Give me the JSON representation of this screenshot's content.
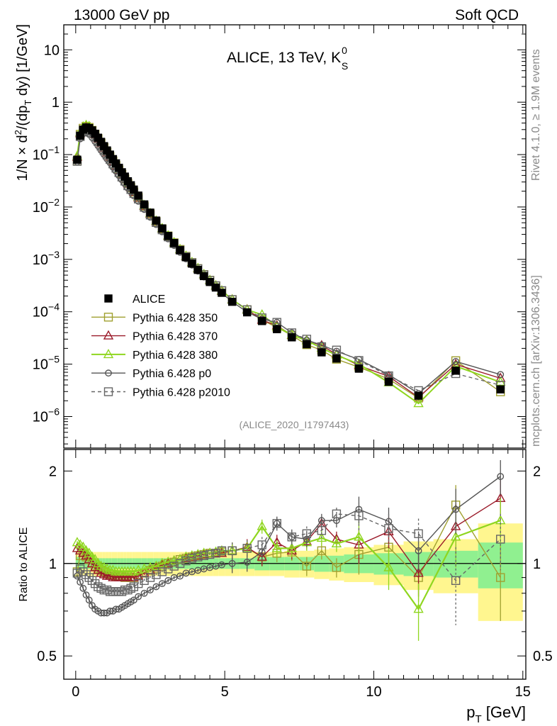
{
  "header": {
    "left": "13000 GeV pp",
    "right": "Soft QCD"
  },
  "side_labels": {
    "top": "Rivet 4.1.0, ≥ 1.9M events",
    "bottom": "mcplots.cern.ch [arXiv:1306.3436]"
  },
  "colors": {
    "alice": "#000000",
    "p350": "#a0a030",
    "p370": "#9b1b2a",
    "p380": "#8fd61f",
    "p0": "#555555",
    "p2010": "#666666",
    "band_yellow": "#fff68f",
    "band_green": "#90f090"
  },
  "chart_data": [
    {
      "type": "scatter",
      "title": "ALICE, 13 TeV, K",
      "title_sup": "0",
      "title_sub": "S",
      "ylabel": "1/N × d²/(dp_T dy) [1/GeV]",
      "ylabel_parts": [
        "1/N",
        "×",
        " d",
        "2",
        "/(dp",
        "T",
        " dy) [1/GeV]"
      ],
      "yscale": "log",
      "ylim": [
        2.5e-07,
        30
      ],
      "xlim": [
        -0.4,
        15.1
      ],
      "ytick_labels": [
        {
          "v": 10,
          "m": "10",
          "e": ""
        },
        {
          "v": 1,
          "m": "1",
          "e": ""
        },
        {
          "v": 0.1,
          "m": "10",
          "e": "−1"
        },
        {
          "v": 0.01,
          "m": "10",
          "e": "−2"
        },
        {
          "v": 0.001,
          "m": "10",
          "e": "−3"
        },
        {
          "v": 0.0001,
          "m": "10",
          "e": "−4"
        },
        {
          "v": 1e-05,
          "m": "10",
          "e": "−5"
        },
        {
          "v": 1e-06,
          "m": "10",
          "e": "−6"
        }
      ],
      "watermark": "(ALICE_2020_I1797443)",
      "x": [
        0.05,
        0.15,
        0.25,
        0.35,
        0.45,
        0.55,
        0.65,
        0.75,
        0.85,
        0.95,
        1.05,
        1.15,
        1.25,
        1.35,
        1.45,
        1.55,
        1.65,
        1.75,
        1.85,
        1.95,
        2.1,
        2.3,
        2.5,
        2.7,
        2.9,
        3.1,
        3.3,
        3.5,
        3.7,
        3.9,
        4.1,
        4.3,
        4.5,
        4.7,
        4.9,
        5.25,
        5.75,
        6.25,
        6.75,
        7.25,
        7.75,
        8.25,
        8.75,
        9.5,
        10.5,
        11.5,
        12.75,
        14.25
      ],
      "alice": [
        0.08,
        0.23,
        0.3,
        0.33,
        0.32,
        0.29,
        0.25,
        0.21,
        0.175,
        0.145,
        0.12,
        0.1,
        0.082,
        0.068,
        0.056,
        0.046,
        0.038,
        0.031,
        0.026,
        0.0215,
        0.0165,
        0.0112,
        0.0078,
        0.0055,
        0.0039,
        0.0028,
        0.00205,
        0.0015,
        0.0011,
        0.00083,
        0.00063,
        0.00048,
        0.00037,
        0.00029,
        0.00023,
        0.000155,
        9.75e-05,
        6.65e-05,
        4.65e-05,
        3.25e-05,
        2.4e-05,
        1.68e-05,
        1.28e-05,
        8.2e-06,
        4.6e-06,
        2.5e-06,
        7.5e-06,
        3.3e-06
      ],
      "legend": [
        {
          "label": "ALICE",
          "key": "alice"
        },
        {
          "label": "Pythia 6.428 350",
          "key": "p350"
        },
        {
          "label": "Pythia 6.428 370",
          "key": "p370"
        },
        {
          "label": "Pythia 6.428 380",
          "key": "p380"
        },
        {
          "label": "Pythia 6.428 p0",
          "key": "p0"
        },
        {
          "label": "Pythia 6.428 p2010",
          "key": "p2010"
        }
      ],
      "legend_position": "lower-left"
    },
    {
      "type": "line",
      "ylabel": "Ratio to ALICE",
      "xlabel": "p_T [GeV]",
      "xlabel_parts": [
        "p",
        "T",
        " [GeV]"
      ],
      "yscale": "log",
      "ylim": [
        0.42,
        2.35
      ],
      "xlim": [
        -0.4,
        15.1
      ],
      "xticks": [
        0,
        5,
        10,
        15
      ],
      "xtick_labels": [
        "0",
        "5",
        "10",
        "15"
      ],
      "ytick_labels": [
        {
          "v": 0.5,
          "t": "0.5"
        },
        {
          "v": 1,
          "t": "1"
        },
        {
          "v": 2,
          "t": "2"
        }
      ],
      "band_edges": [
        0,
        0.1,
        0.2,
        0.3,
        0.4,
        0.5,
        0.6,
        0.7,
        0.8,
        0.9,
        1.0,
        1.1,
        1.2,
        1.3,
        1.4,
        1.5,
        1.6,
        1.7,
        1.8,
        1.9,
        2.0,
        2.2,
        2.4,
        2.6,
        2.8,
        3.0,
        3.2,
        3.4,
        3.6,
        3.8,
        4.0,
        4.2,
        4.4,
        4.6,
        4.8,
        5.0,
        5.5,
        6.0,
        6.5,
        7.0,
        7.5,
        8.0,
        8.5,
        9.0,
        10.0,
        11.0,
        12.0,
        13.5,
        15.0
      ],
      "band_yellow": [
        0.1,
        0.09,
        0.09,
        0.09,
        0.09,
        0.09,
        0.09,
        0.09,
        0.09,
        0.09,
        0.09,
        0.09,
        0.09,
        0.09,
        0.09,
        0.09,
        0.09,
        0.09,
        0.09,
        0.09,
        0.09,
        0.09,
        0.09,
        0.09,
        0.09,
        0.09,
        0.09,
        0.09,
        0.09,
        0.09,
        0.09,
        0.09,
        0.09,
        0.09,
        0.09,
        0.09,
        0.09,
        0.09,
        0.09,
        0.1,
        0.1,
        0.11,
        0.12,
        0.13,
        0.15,
        0.18,
        0.2,
        0.35
      ],
      "band_green": [
        0.05,
        0.04,
        0.04,
        0.04,
        0.04,
        0.04,
        0.04,
        0.04,
        0.04,
        0.04,
        0.04,
        0.04,
        0.04,
        0.04,
        0.04,
        0.04,
        0.04,
        0.04,
        0.04,
        0.04,
        0.04,
        0.04,
        0.04,
        0.04,
        0.04,
        0.04,
        0.04,
        0.04,
        0.04,
        0.04,
        0.04,
        0.04,
        0.04,
        0.04,
        0.04,
        0.04,
        0.04,
        0.05,
        0.05,
        0.05,
        0.05,
        0.06,
        0.06,
        0.07,
        0.08,
        0.09,
        0.1,
        0.17
      ],
      "series": [
        {
          "key": "p350",
          "name": "Pythia 6.428 350",
          "marker": "square",
          "dash": false,
          "values": [
            0.94,
            1.06,
            1.06,
            1.05,
            1.03,
            1.0,
            0.98,
            0.96,
            0.95,
            0.94,
            0.93,
            0.92,
            0.92,
            0.91,
            0.91,
            0.91,
            0.9,
            0.91,
            0.9,
            0.9,
            0.92,
            0.93,
            0.95,
            0.96,
            0.98,
            1.0,
            1.01,
            1.03,
            1.04,
            1.05,
            1.06,
            1.07,
            1.08,
            1.08,
            1.09,
            1.1,
            1.12,
            1.05,
            1.08,
            1.09,
            0.98,
            1.1,
            0.97,
            1.07,
            1.13,
            0.9,
            1.55,
            0.9
          ]
        },
        {
          "key": "p370",
          "name": "Pythia 6.428 370",
          "marker": "triangle",
          "dash": false,
          "values": [
            1.12,
            1.1,
            1.08,
            1.06,
            1.03,
            1.0,
            0.97,
            0.95,
            0.93,
            0.92,
            0.91,
            0.91,
            0.9,
            0.9,
            0.9,
            0.9,
            0.9,
            0.9,
            0.9,
            0.9,
            0.91,
            0.93,
            0.95,
            0.97,
            0.99,
            1.0,
            1.02,
            1.03,
            1.04,
            1.05,
            1.06,
            1.07,
            1.08,
            1.08,
            1.08,
            1.1,
            1.13,
            1.05,
            1.17,
            1.1,
            1.18,
            1.35,
            1.2,
            1.15,
            1.27,
            0.93,
            1.32,
            1.63
          ]
        },
        {
          "key": "p380",
          "name": "Pythia 6.428 380",
          "marker": "triangle",
          "dash": false,
          "values": [
            1.17,
            1.15,
            1.13,
            1.1,
            1.08,
            1.05,
            1.03,
            1.0,
            0.98,
            0.97,
            0.96,
            0.95,
            0.95,
            0.94,
            0.94,
            0.94,
            0.94,
            0.94,
            0.94,
            0.94,
            0.95,
            0.96,
            0.97,
            0.98,
            1.0,
            1.01,
            1.02,
            1.03,
            1.05,
            1.06,
            1.07,
            1.08,
            1.08,
            1.09,
            1.1,
            1.1,
            1.12,
            1.32,
            1.12,
            1.12,
            1.17,
            1.21,
            1.16,
            1.22,
            0.97,
            0.71,
            1.22,
            1.38
          ]
        },
        {
          "key": "p0",
          "name": "Pythia 6.428 p0",
          "marker": "circle",
          "dash": false,
          "values": [
            0.91,
            0.87,
            0.83,
            0.79,
            0.76,
            0.73,
            0.71,
            0.7,
            0.69,
            0.69,
            0.69,
            0.7,
            0.7,
            0.71,
            0.71,
            0.72,
            0.73,
            0.74,
            0.75,
            0.76,
            0.78,
            0.8,
            0.82,
            0.84,
            0.86,
            0.88,
            0.9,
            0.91,
            0.93,
            0.94,
            0.95,
            0.96,
            0.97,
            0.98,
            0.99,
            1.0,
            1.01,
            1.09,
            1.35,
            1.22,
            1.2,
            1.38,
            1.38,
            1.5,
            1.37,
            1.1,
            1.5,
            1.92
          ]
        },
        {
          "key": "p2010",
          "name": "Pythia 6.428 p2010",
          "marker": "square",
          "dash": true,
          "values": [
            0.93,
            0.96,
            0.94,
            0.92,
            0.9,
            0.88,
            0.86,
            0.84,
            0.83,
            0.82,
            0.82,
            0.81,
            0.81,
            0.81,
            0.81,
            0.81,
            0.82,
            0.82,
            0.83,
            0.84,
            0.86,
            0.88,
            0.9,
            0.92,
            0.94,
            0.96,
            0.98,
            1.0,
            1.02,
            1.04,
            1.05,
            1.06,
            1.07,
            1.08,
            1.1,
            1.1,
            1.12,
            1.15,
            1.35,
            1.22,
            1.25,
            1.28,
            1.45,
            1.43,
            1.3,
            1.25,
            0.88,
            1.2
          ]
        }
      ]
    }
  ]
}
